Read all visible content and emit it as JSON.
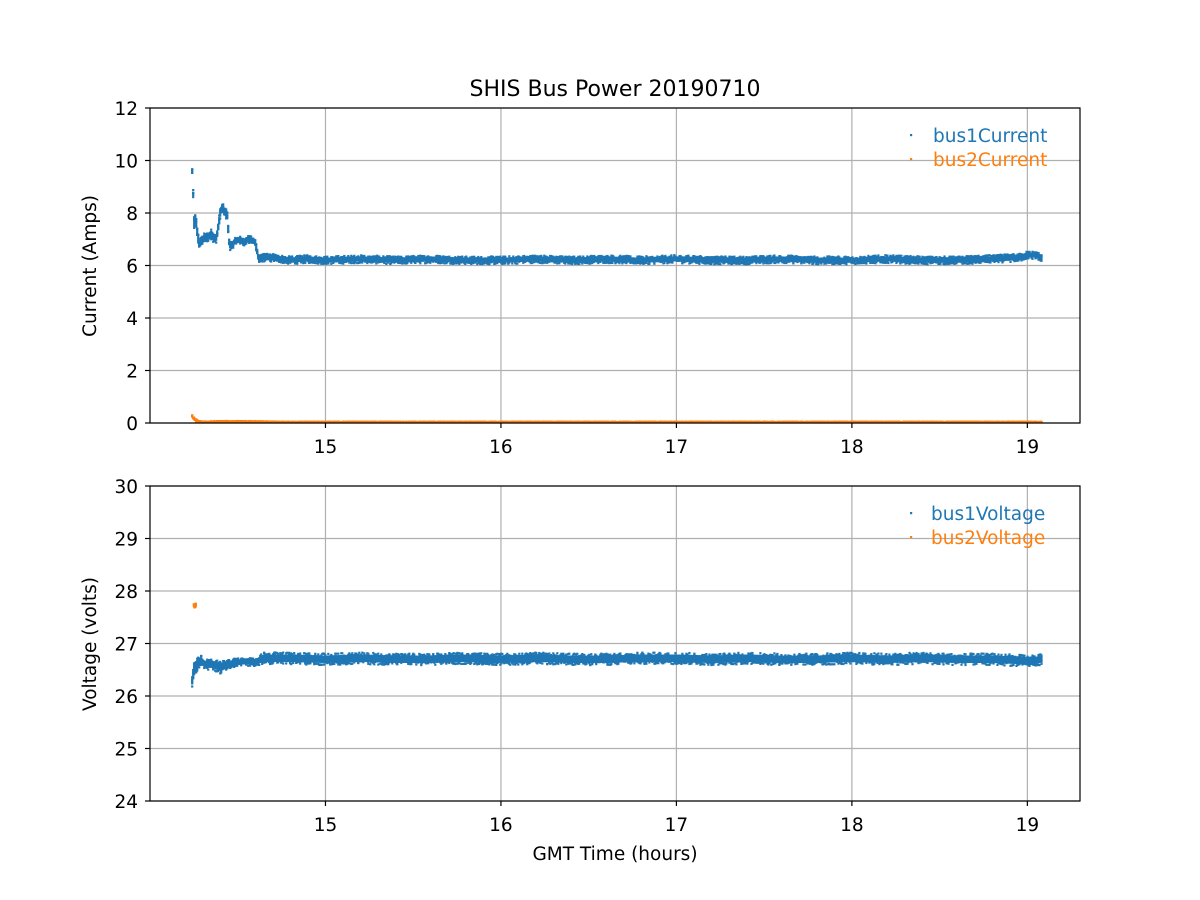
{
  "chart_data": [
    {
      "type": "scatter",
      "title": "SHIS Bus Power 20190710",
      "xlabel": "",
      "ylabel": "Current (Amps)",
      "xlim": [
        14.0,
        19.3
      ],
      "ylim": [
        0,
        12
      ],
      "xticks": [
        "15",
        "16",
        "17",
        "18",
        "19"
      ],
      "yticks": [
        "0",
        "2",
        "4",
        "6",
        "8",
        "10",
        "12"
      ],
      "grid": true,
      "legend_position": "upper right",
      "series": [
        {
          "name": "bus1Current",
          "color": "#1f77b4",
          "x": [
            14.24,
            14.25,
            14.25,
            14.26,
            14.27,
            14.28,
            14.3,
            14.33,
            14.35,
            14.37,
            14.38,
            14.4,
            14.41,
            14.42,
            14.44,
            14.45,
            14.46,
            14.48,
            14.5,
            14.53,
            14.56,
            14.6,
            14.62,
            14.64,
            14.7,
            14.8,
            14.9,
            15.0,
            15.2,
            15.4,
            15.6,
            15.8,
            16.0,
            16.2,
            16.4,
            16.6,
            16.8,
            17.0,
            17.2,
            17.4,
            17.6,
            17.8,
            18.0,
            18.2,
            18.4,
            18.6,
            18.8,
            18.95,
            19.0,
            19.05,
            19.08
          ],
          "y": [
            9.6,
            8.0,
            7.6,
            7.8,
            7.2,
            6.8,
            7.0,
            7.1,
            7.2,
            7.0,
            7.1,
            8.0,
            8.2,
            8.1,
            7.9,
            6.9,
            6.7,
            6.9,
            7.0,
            6.9,
            7.0,
            6.9,
            6.2,
            6.3,
            6.3,
            6.2,
            6.25,
            6.2,
            6.25,
            6.2,
            6.25,
            6.2,
            6.2,
            6.25,
            6.2,
            6.25,
            6.2,
            6.25,
            6.2,
            6.2,
            6.25,
            6.2,
            6.2,
            6.25,
            6.2,
            6.2,
            6.25,
            6.3,
            6.4,
            6.4,
            6.3
          ],
          "band": [
            0.35,
            0.4,
            0.6,
            0.5,
            0.4,
            0.4,
            0.4,
            0.4,
            0.4,
            0.4,
            0.4,
            0.4,
            0.4,
            0.4,
            0.4,
            0.35,
            0.35,
            0.3,
            0.3,
            0.3,
            0.3,
            0.3,
            0.35,
            0.3,
            0.3,
            0.3,
            0.3,
            0.3,
            0.3,
            0.3,
            0.3,
            0.3,
            0.3,
            0.3,
            0.3,
            0.3,
            0.3,
            0.3,
            0.3,
            0.3,
            0.3,
            0.3,
            0.3,
            0.3,
            0.3,
            0.3,
            0.3,
            0.3,
            0.3,
            0.3,
            0.3
          ]
        },
        {
          "name": "bus2Current",
          "color": "#ff7f0e",
          "x": [
            14.24,
            14.26,
            14.28,
            14.3,
            14.35,
            14.4,
            14.5,
            14.6,
            14.8,
            15.0,
            15.5,
            16.0,
            16.5,
            17.0,
            17.5,
            18.0,
            18.5,
            19.0,
            19.08
          ],
          "y": [
            0.25,
            0.1,
            0.05,
            0.04,
            0.05,
            0.06,
            0.06,
            0.05,
            0.04,
            0.04,
            0.04,
            0.04,
            0.04,
            0.04,
            0.04,
            0.04,
            0.04,
            0.04,
            0.04
          ],
          "band": [
            0.1,
            0.1,
            0.05,
            0.04,
            0.04,
            0.04,
            0.04,
            0.04,
            0.03,
            0.03,
            0.03,
            0.03,
            0.03,
            0.03,
            0.03,
            0.03,
            0.03,
            0.03,
            0.03
          ]
        }
      ]
    },
    {
      "type": "scatter",
      "title": "",
      "xlabel": "GMT Time (hours)",
      "ylabel": "Voltage (volts)",
      "xlim": [
        14.0,
        19.3
      ],
      "ylim": [
        24,
        30
      ],
      "xticks": [
        "15",
        "16",
        "17",
        "18",
        "19"
      ],
      "yticks": [
        "24",
        "25",
        "26",
        "27",
        "28",
        "29",
        "30"
      ],
      "grid": true,
      "legend_position": "upper right",
      "series": [
        {
          "name": "bus1Voltage",
          "color": "#1f77b4",
          "x": [
            14.24,
            14.25,
            14.27,
            14.29,
            14.31,
            14.33,
            14.36,
            14.4,
            14.44,
            14.5,
            14.55,
            14.6,
            14.65,
            14.7,
            14.8,
            15.0,
            15.2,
            15.4,
            15.6,
            15.8,
            16.0,
            16.2,
            16.4,
            16.6,
            16.8,
            17.0,
            17.2,
            17.4,
            17.6,
            17.8,
            18.0,
            18.2,
            18.4,
            18.6,
            18.8,
            18.95,
            19.02,
            19.08
          ],
          "y": [
            26.3,
            26.5,
            26.6,
            26.7,
            26.6,
            26.6,
            26.6,
            26.55,
            26.6,
            26.65,
            26.65,
            26.65,
            26.72,
            26.72,
            26.72,
            26.7,
            26.72,
            26.7,
            26.7,
            26.72,
            26.7,
            26.72,
            26.7,
            26.7,
            26.72,
            26.72,
            26.7,
            26.72,
            26.7,
            26.7,
            26.72,
            26.7,
            26.72,
            26.7,
            26.7,
            26.68,
            26.66,
            26.7
          ],
          "band": [
            0.25,
            0.35,
            0.3,
            0.15,
            0.15,
            0.2,
            0.2,
            0.25,
            0.2,
            0.15,
            0.15,
            0.15,
            0.22,
            0.22,
            0.22,
            0.22,
            0.22,
            0.22,
            0.22,
            0.22,
            0.22,
            0.22,
            0.22,
            0.22,
            0.22,
            0.22,
            0.22,
            0.22,
            0.22,
            0.22,
            0.22,
            0.22,
            0.22,
            0.22,
            0.22,
            0.22,
            0.22,
            0.2
          ]
        },
        {
          "name": "bus2Voltage",
          "color": "#ff7f0e",
          "x": [
            14.25,
            14.255,
            14.26
          ],
          "y": [
            27.72,
            27.7,
            27.74
          ],
          "band": [
            0.06,
            0.06,
            0.06
          ]
        }
      ]
    }
  ]
}
